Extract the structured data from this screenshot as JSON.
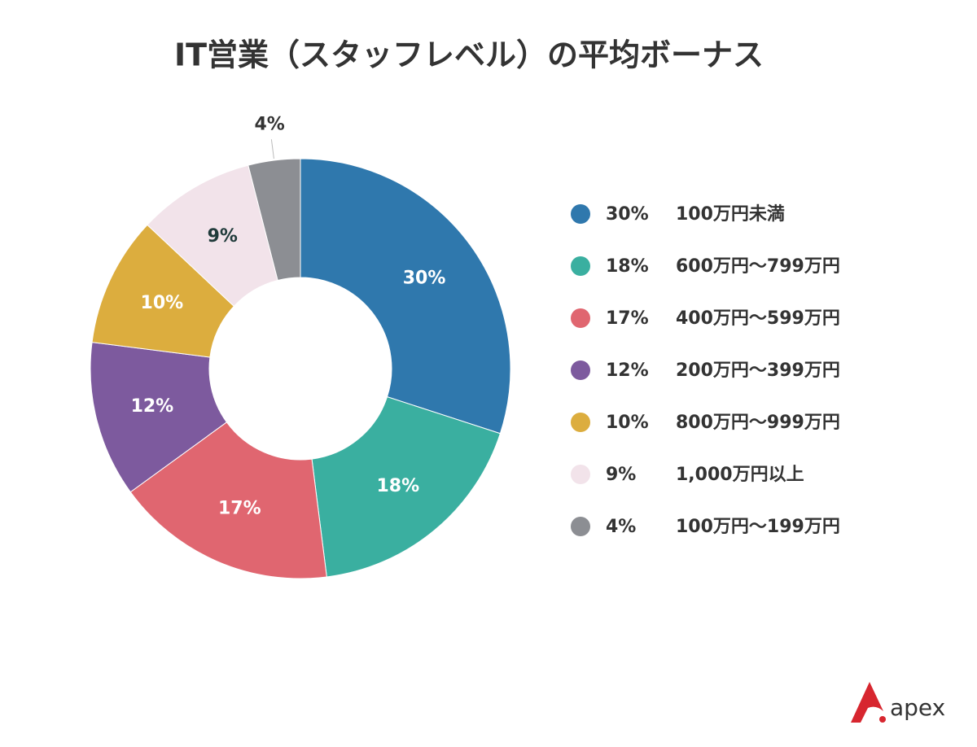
{
  "chart_data": {
    "type": "donut",
    "title": "IT営業（スタッフレベル）の平均ボーナス",
    "categories": [
      "100万円未満",
      "600万円〜799万円",
      "400万円〜599万円",
      "200万円〜399万円",
      "800万円〜999万円",
      "1,000万円以上",
      "100万円〜199万円"
    ],
    "values": [
      30,
      18,
      17,
      12,
      10,
      9,
      4
    ],
    "value_labels": [
      "30%",
      "18%",
      "17%",
      "12%",
      "10%",
      "9%",
      "4%"
    ],
    "colors": [
      "#2f78ad",
      "#3aafa0",
      "#e06670",
      "#7d5a9e",
      "#dcad3e",
      "#f2e3ea",
      "#8c8e93"
    ],
    "legend": "right"
  },
  "logo": "apex"
}
